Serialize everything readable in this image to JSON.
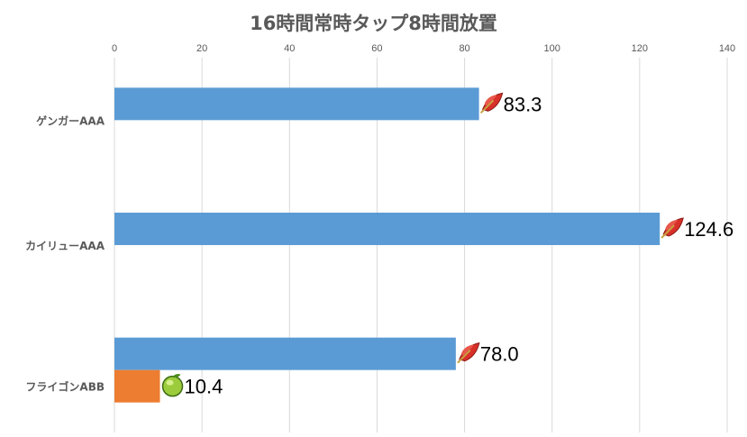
{
  "chart_data": {
    "type": "bar",
    "orientation": "horizontal",
    "title": "16時間常時タップ8時間放置",
    "xlim": [
      0,
      140
    ],
    "xticks": [
      0,
      20,
      40,
      60,
      80,
      100,
      120,
      140
    ],
    "xaxis_position": "top",
    "grid": true,
    "legend": "none",
    "categories": [
      "ゲンガーAAA",
      "カイリューAAA",
      "フライゴンABB"
    ],
    "series": [
      {
        "values": [
          83.3,
          124.6,
          78.0
        ],
        "color": "#5b9bd5",
        "icon": "red-leaf-icon"
      },
      {
        "values": [
          null,
          null,
          10.4
        ],
        "color": "#ed7d31",
        "icon": "green-apple-icon"
      }
    ],
    "data_labels": [
      [
        "83.3",
        "124.6",
        "78.0"
      ],
      [
        null,
        null,
        "10.4"
      ]
    ]
  }
}
